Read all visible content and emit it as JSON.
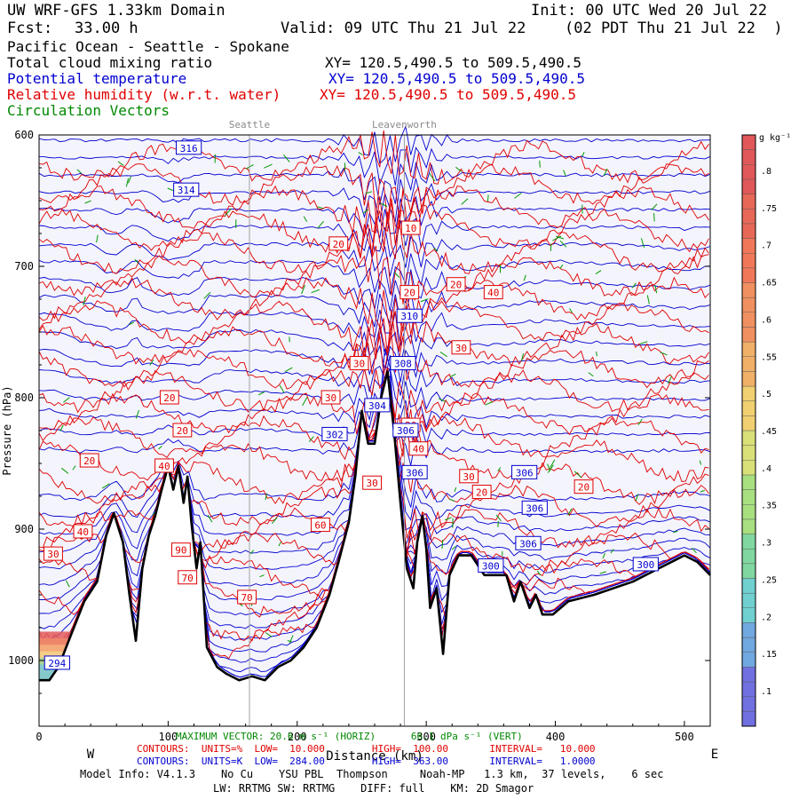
{
  "header": {
    "model": "UW WRF-GFS 1.33km Domain",
    "init": "Init: 00 UTC Wed 20 Jul 22",
    "fcst_label": "Fcst:",
    "fcst_value": "33.00 h",
    "valid": "Valid: 09 UTC Thu 21 Jul 22",
    "valid_local": "(02 PDT Thu 21 Jul 22  )",
    "region": "Pacific Ocean - Seattle - Spokane",
    "var1": "Total cloud mixing ratio",
    "var1_xy": "XY= 120.5,490.5 to 509.5,490.5",
    "var2": "Potential temperature",
    "var2_xy": "XY= 120.5,490.5 to 509.5,490.5",
    "var3": "Relative humidity (w.r.t. water)",
    "var3_xy": "XY= 120.5,490.5 to 509.5,490.5",
    "var4": "Circulation Vectors"
  },
  "colors": {
    "theta": "#0000d0",
    "rh": "#e00000",
    "vectors": "#009900",
    "terrain": "#000000",
    "background_fill": "#f4f4fc",
    "marker": "#a0a0a0"
  },
  "chart_data": {
    "type": "cross-section",
    "x": {
      "label": "Distance (km)",
      "ticks": [
        0,
        100,
        200,
        300,
        400,
        500
      ],
      "range": [
        0,
        520
      ]
    },
    "y": {
      "label": "Pressure (hPa)",
      "ticks": [
        600,
        700,
        800,
        900,
        1000
      ],
      "range": [
        600,
        1050
      ],
      "inverted": true
    },
    "location_markers": [
      {
        "name": "Seattle",
        "x": 163
      },
      {
        "name": "Leavenworth",
        "x": 283
      }
    ],
    "direction_labels": {
      "left": "W",
      "right": "E"
    },
    "terrain_surface_hpa": [
      [
        0,
        1015
      ],
      [
        8,
        1015
      ],
      [
        15,
        1005
      ],
      [
        25,
        980
      ],
      [
        35,
        955
      ],
      [
        45,
        940
      ],
      [
        52,
        905
      ],
      [
        58,
        888
      ],
      [
        65,
        910
      ],
      [
        70,
        950
      ],
      [
        75,
        985
      ],
      [
        80,
        930
      ],
      [
        85,
        905
      ],
      [
        90,
        890
      ],
      [
        95,
        870
      ],
      [
        100,
        852
      ],
      [
        104,
        870
      ],
      [
        108,
        852
      ],
      [
        112,
        880
      ],
      [
        115,
        860
      ],
      [
        118,
        895
      ],
      [
        122,
        930
      ],
      [
        125,
        910
      ],
      [
        130,
        990
      ],
      [
        138,
        1005
      ],
      [
        145,
        1010
      ],
      [
        155,
        1015
      ],
      [
        165,
        1012
      ],
      [
        175,
        1015
      ],
      [
        185,
        1005
      ],
      [
        195,
        1000
      ],
      [
        205,
        990
      ],
      [
        215,
        975
      ],
      [
        225,
        950
      ],
      [
        232,
        925
      ],
      [
        240,
        895
      ],
      [
        245,
        860
      ],
      [
        250,
        810
      ],
      [
        255,
        835
      ],
      [
        260,
        835
      ],
      [
        265,
        800
      ],
      [
        270,
        780
      ],
      [
        275,
        825
      ],
      [
        280,
        880
      ],
      [
        285,
        930
      ],
      [
        290,
        945
      ],
      [
        293,
        910
      ],
      [
        297,
        890
      ],
      [
        300,
        915
      ],
      [
        303,
        960
      ],
      [
        308,
        945
      ],
      [
        313,
        995
      ],
      [
        318,
        935
      ],
      [
        325,
        920
      ],
      [
        335,
        920
      ],
      [
        345,
        935
      ],
      [
        355,
        935
      ],
      [
        362,
        935
      ],
      [
        368,
        955
      ],
      [
        373,
        940
      ],
      [
        380,
        960
      ],
      [
        385,
        950
      ],
      [
        390,
        965
      ],
      [
        398,
        965
      ],
      [
        410,
        955
      ],
      [
        430,
        950
      ],
      [
        460,
        940
      ],
      [
        480,
        930
      ],
      [
        500,
        920
      ],
      [
        510,
        925
      ],
      [
        520,
        935
      ]
    ],
    "theta_contours": {
      "units": "K",
      "low": 284.0,
      "high": 363.0,
      "interval": 1.0,
      "labels": [
        {
          "value": 316,
          "x": 116,
          "p": 610
        },
        {
          "value": 314,
          "x": 114,
          "p": 642
        },
        {
          "value": 310,
          "x": 287,
          "p": 738
        },
        {
          "value": 308,
          "x": 282,
          "p": 774
        },
        {
          "value": 306,
          "x": 284,
          "p": 825
        },
        {
          "value": 304,
          "x": 262,
          "p": 806
        },
        {
          "value": 302,
          "x": 229,
          "p": 828
        },
        {
          "value": 306,
          "x": 291,
          "p": 857
        },
        {
          "value": 306,
          "x": 376,
          "p": 857
        },
        {
          "value": 306,
          "x": 384,
          "p": 884
        },
        {
          "value": 306,
          "x": 379,
          "p": 911
        },
        {
          "value": 300,
          "x": 350,
          "p": 928
        },
        {
          "value": 300,
          "x": 470,
          "p": 927
        },
        {
          "value": 294,
          "x": 14,
          "p": 1002
        }
      ]
    },
    "rh_contours": {
      "units": "%",
      "low": 10.0,
      "high": 100.0,
      "interval": 10.0,
      "labels": [
        {
          "value": 20,
          "x": 232,
          "p": 683
        },
        {
          "value": 10,
          "x": 288,
          "p": 671
        },
        {
          "value": 20,
          "x": 287,
          "p": 720
        },
        {
          "value": 20,
          "x": 323,
          "p": 714
        },
        {
          "value": 40,
          "x": 352,
          "p": 720
        },
        {
          "value": 30,
          "x": 327,
          "p": 762
        },
        {
          "value": 30,
          "x": 248,
          "p": 774
        },
        {
          "value": 30,
          "x": 226,
          "p": 800
        },
        {
          "value": 20,
          "x": 101,
          "p": 800
        },
        {
          "value": 20,
          "x": 111,
          "p": 825
        },
        {
          "value": 20,
          "x": 39,
          "p": 848
        },
        {
          "value": 40,
          "x": 97,
          "p": 852
        },
        {
          "value": 20,
          "x": 288,
          "p": 821
        },
        {
          "value": 40,
          "x": 294,
          "p": 839
        },
        {
          "value": 30,
          "x": 258,
          "p": 865
        },
        {
          "value": 30,
          "x": 333,
          "p": 860
        },
        {
          "value": 20,
          "x": 343,
          "p": 872
        },
        {
          "value": 20,
          "x": 422,
          "p": 868
        },
        {
          "value": 60,
          "x": 218,
          "p": 897
        },
        {
          "value": 40,
          "x": 34,
          "p": 902
        },
        {
          "value": 30,
          "x": 11,
          "p": 919
        },
        {
          "value": 90,
          "x": 110,
          "p": 916
        },
        {
          "value": 70,
          "x": 115,
          "p": 937
        },
        {
          "value": 70,
          "x": 161,
          "p": 952
        }
      ]
    },
    "colorbar": {
      "units": "g kg⁻¹",
      "ticks": [
        ".1",
        ".15",
        ".2",
        ".25",
        ".3",
        ".35",
        ".4",
        ".45",
        ".5",
        ".55",
        ".6",
        ".65",
        ".7",
        ".75",
        ".8"
      ]
    },
    "cloud_region": {
      "x": [
        0,
        48
      ],
      "p": [
        990,
        1015
      ]
    }
  },
  "footer": {
    "max_vector": "MAXIMUM VECTOR: 20.6 m s⁻¹ (HORIZ)      66.1 dPa s⁻¹ (VERT)",
    "rh_contours": "CONTOURS:  UNITS=%  LOW=  10.000        HIGH=  100.00       INTERVAL=   10.000",
    "theta_contours": "CONTOURS:  UNITS=K  LOW=  284.00        HIGH=  363.00       INTERVAL=   1.0000",
    "model_info": "Model Info: V4.1.3    No Cu    YSU PBL  Thompson     Noah-MP   1.3 km,  37 levels,    6 sec",
    "physics": "LW: RRTMG SW: RRTMG    DIFF: full    KM: 2D Smagor"
  }
}
